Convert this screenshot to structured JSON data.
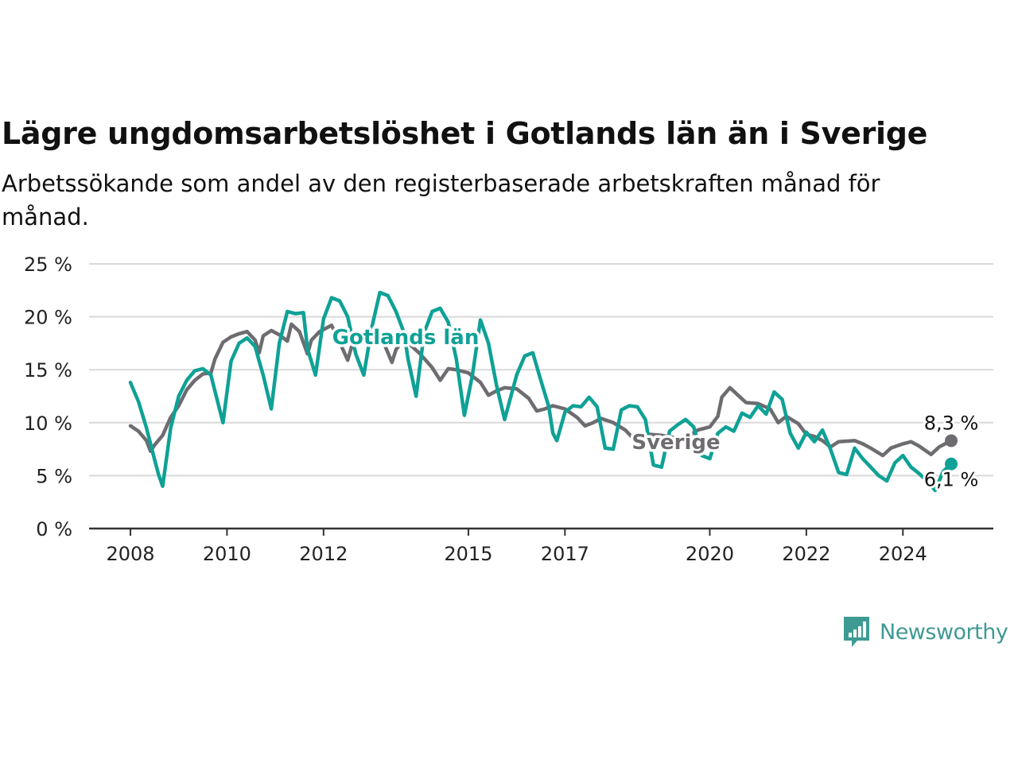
{
  "title": "Lägre ungdomsarbetslöshet i Gotlands län än i Sverige",
  "subtitle": "Arbetssökande som andel av den registerbaserade arbetskraften månad för månad.",
  "brand": "Newsworthy",
  "colors": {
    "gotland": "#0fa196",
    "sverige": "#6e6c70",
    "grid": "#d9d9d9",
    "axis": "#333333",
    "brand": "#3f9a93"
  },
  "chart_data": {
    "type": "line",
    "title": "Lägre ungdomsarbetslöshet i Gotlands län än i Sverige",
    "subtitle": "Arbetssökande som andel av den registerbaserade arbetskraften månad för månad.",
    "ylim": [
      0,
      25
    ],
    "xlim": [
      "2008-01",
      "2025-06"
    ],
    "y_ticks": [
      0,
      5,
      10,
      15,
      20,
      25
    ],
    "y_tick_labels": [
      "0 %",
      "5 %",
      "10 %",
      "15 %",
      "20 %",
      "25 %"
    ],
    "x_ticks": [
      "2008-01",
      "2010-01",
      "2012-01",
      "2015-01",
      "2017-01",
      "2020-01",
      "2022-01",
      "2024-01"
    ],
    "x_tick_labels": [
      "2008",
      "2010",
      "2012",
      "2015",
      "2017",
      "2020",
      "2022",
      "2024"
    ],
    "grid": "horizontal",
    "series": [
      {
        "name": "Sverige",
        "end_label": "8,3 %",
        "points": [
          [
            "2008-01",
            9.7
          ],
          [
            "2008-03",
            9.2
          ],
          [
            "2008-05",
            8.3
          ],
          [
            "2008-06",
            7.3
          ],
          [
            "2008-07",
            7.9
          ],
          [
            "2008-09",
            8.8
          ],
          [
            "2008-11",
            10.5
          ],
          [
            "2009-01",
            11.6
          ],
          [
            "2009-03",
            13.1
          ],
          [
            "2009-05",
            14.0
          ],
          [
            "2009-07",
            14.6
          ],
          [
            "2009-09",
            14.7
          ],
          [
            "2009-10",
            16.0
          ],
          [
            "2009-12",
            17.6
          ],
          [
            "2010-02",
            18.1
          ],
          [
            "2010-04",
            18.4
          ],
          [
            "2010-06",
            18.6
          ],
          [
            "2010-08",
            17.8
          ],
          [
            "2010-09",
            16.6
          ],
          [
            "2010-10",
            18.2
          ],
          [
            "2010-12",
            18.7
          ],
          [
            "2011-02",
            18.3
          ],
          [
            "2011-04",
            17.7
          ],
          [
            "2011-05",
            19.3
          ],
          [
            "2011-07",
            18.6
          ],
          [
            "2011-09",
            16.5
          ],
          [
            "2011-10",
            17.8
          ],
          [
            "2011-12",
            18.6
          ],
          [
            "2012-03",
            19.2
          ],
          [
            "2012-05",
            17.6
          ],
          [
            "2012-07",
            15.9
          ],
          [
            "2012-08",
            17.2
          ],
          [
            "2012-10",
            18.4
          ],
          [
            "2013-01",
            18.6
          ],
          [
            "2013-04",
            17.5
          ],
          [
            "2013-06",
            15.7
          ],
          [
            "2013-07",
            16.9
          ],
          [
            "2013-09",
            17.9
          ],
          [
            "2014-01",
            16.5
          ],
          [
            "2014-04",
            15.2
          ],
          [
            "2014-06",
            14.0
          ],
          [
            "2014-08",
            15.1
          ],
          [
            "2014-10",
            15.0
          ],
          [
            "2015-01",
            14.7
          ],
          [
            "2015-04",
            13.8
          ],
          [
            "2015-06",
            12.6
          ],
          [
            "2015-08",
            13.0
          ],
          [
            "2015-10",
            13.3
          ],
          [
            "2016-01",
            13.2
          ],
          [
            "2016-04",
            12.3
          ],
          [
            "2016-06",
            11.1
          ],
          [
            "2016-08",
            11.3
          ],
          [
            "2016-10",
            11.6
          ],
          [
            "2017-01",
            11.3
          ],
          [
            "2017-04",
            10.5
          ],
          [
            "2017-06",
            9.7
          ],
          [
            "2017-08",
            10.0
          ],
          [
            "2017-10",
            10.4
          ],
          [
            "2018-01",
            10.0
          ],
          [
            "2018-04",
            9.3
          ],
          [
            "2018-06",
            8.5
          ],
          [
            "2018-08",
            8.7
          ],
          [
            "2018-10",
            8.9
          ],
          [
            "2019-01",
            8.8
          ],
          [
            "2019-04",
            8.6
          ],
          [
            "2019-06",
            8.3
          ],
          [
            "2019-08",
            8.8
          ],
          [
            "2019-10",
            9.3
          ],
          [
            "2020-01",
            9.6
          ],
          [
            "2020-03",
            10.6
          ],
          [
            "2020-04",
            12.4
          ],
          [
            "2020-06",
            13.3
          ],
          [
            "2020-08",
            12.6
          ],
          [
            "2020-10",
            11.9
          ],
          [
            "2021-01",
            11.8
          ],
          [
            "2021-04",
            11.3
          ],
          [
            "2021-06",
            10.0
          ],
          [
            "2021-08",
            10.6
          ],
          [
            "2021-11",
            9.9
          ],
          [
            "2022-01",
            8.9
          ],
          [
            "2022-03",
            8.7
          ],
          [
            "2022-05",
            8.3
          ],
          [
            "2022-07",
            7.7
          ],
          [
            "2022-09",
            8.2
          ],
          [
            "2023-01",
            8.3
          ],
          [
            "2023-03",
            8.0
          ],
          [
            "2023-05",
            7.6
          ],
          [
            "2023-08",
            6.9
          ],
          [
            "2023-10",
            7.6
          ],
          [
            "2024-01",
            8.0
          ],
          [
            "2024-03",
            8.2
          ],
          [
            "2024-05",
            7.8
          ],
          [
            "2024-08",
            7.0
          ],
          [
            "2024-10",
            7.7
          ],
          [
            "2025-01",
            8.3
          ]
        ]
      },
      {
        "name": "Gotlands län",
        "end_label": "6,1 %",
        "points": [
          [
            "2008-01",
            13.8
          ],
          [
            "2008-03",
            12.0
          ],
          [
            "2008-05",
            9.5
          ],
          [
            "2008-07",
            6.5
          ],
          [
            "2008-08",
            5.1
          ],
          [
            "2008-09",
            4.0
          ],
          [
            "2008-11",
            9.5
          ],
          [
            "2009-01",
            12.5
          ],
          [
            "2009-03",
            14.0
          ],
          [
            "2009-05",
            14.9
          ],
          [
            "2009-07",
            15.1
          ],
          [
            "2009-09",
            14.5
          ],
          [
            "2009-10",
            13.0
          ],
          [
            "2009-12",
            10.0
          ],
          [
            "2010-02",
            15.8
          ],
          [
            "2010-04",
            17.5
          ],
          [
            "2010-06",
            18.0
          ],
          [
            "2010-08",
            17.2
          ],
          [
            "2010-09",
            15.8
          ],
          [
            "2010-10",
            14.5
          ],
          [
            "2010-12",
            11.3
          ],
          [
            "2011-02",
            17.5
          ],
          [
            "2011-04",
            20.5
          ],
          [
            "2011-06",
            20.3
          ],
          [
            "2011-08",
            20.4
          ],
          [
            "2011-09",
            17.0
          ],
          [
            "2011-11",
            14.5
          ],
          [
            "2012-01",
            19.8
          ],
          [
            "2012-03",
            21.8
          ],
          [
            "2012-05",
            21.5
          ],
          [
            "2012-07",
            20.0
          ],
          [
            "2012-09",
            16.5
          ],
          [
            "2012-11",
            14.5
          ],
          [
            "2013-01",
            19.0
          ],
          [
            "2013-03",
            22.3
          ],
          [
            "2013-05",
            22.0
          ],
          [
            "2013-07",
            20.5
          ],
          [
            "2013-09",
            18.5
          ],
          [
            "2013-10",
            16.0
          ],
          [
            "2013-12",
            12.5
          ],
          [
            "2014-02",
            18.5
          ],
          [
            "2014-04",
            20.5
          ],
          [
            "2014-06",
            20.8
          ],
          [
            "2014-08",
            19.5
          ],
          [
            "2014-10",
            16.0
          ],
          [
            "2014-12",
            10.7
          ],
          [
            "2015-02",
            14.5
          ],
          [
            "2015-04",
            19.7
          ],
          [
            "2015-06",
            17.5
          ],
          [
            "2015-08",
            13.5
          ],
          [
            "2015-10",
            10.3
          ],
          [
            "2016-01",
            14.5
          ],
          [
            "2016-03",
            16.3
          ],
          [
            "2016-05",
            16.6
          ],
          [
            "2016-07",
            14.0
          ],
          [
            "2016-09",
            11.5
          ],
          [
            "2016-10",
            9.0
          ],
          [
            "2016-11",
            8.3
          ],
          [
            "2017-01",
            11.0
          ],
          [
            "2017-03",
            11.6
          ],
          [
            "2017-05",
            11.5
          ],
          [
            "2017-07",
            12.4
          ],
          [
            "2017-09",
            11.5
          ],
          [
            "2017-11",
            7.6
          ],
          [
            "2018-01",
            7.5
          ],
          [
            "2018-03",
            11.2
          ],
          [
            "2018-05",
            11.6
          ],
          [
            "2018-07",
            11.5
          ],
          [
            "2018-09",
            10.3
          ],
          [
            "2018-11",
            6.0
          ],
          [
            "2019-01",
            5.8
          ],
          [
            "2019-03",
            9.2
          ],
          [
            "2019-05",
            9.8
          ],
          [
            "2019-07",
            10.3
          ],
          [
            "2019-09",
            9.6
          ],
          [
            "2019-11",
            6.9
          ],
          [
            "2020-01",
            6.6
          ],
          [
            "2020-03",
            9.0
          ],
          [
            "2020-05",
            9.6
          ],
          [
            "2020-07",
            9.2
          ],
          [
            "2020-09",
            10.9
          ],
          [
            "2020-11",
            10.5
          ],
          [
            "2021-01",
            11.6
          ],
          [
            "2021-03",
            10.8
          ],
          [
            "2021-05",
            12.9
          ],
          [
            "2021-07",
            12.2
          ],
          [
            "2021-09",
            9.0
          ],
          [
            "2021-11",
            7.6
          ],
          [
            "2022-01",
            9.1
          ],
          [
            "2022-03",
            8.2
          ],
          [
            "2022-05",
            9.3
          ],
          [
            "2022-07",
            7.5
          ],
          [
            "2022-09",
            5.3
          ],
          [
            "2022-11",
            5.1
          ],
          [
            "2023-01",
            7.6
          ],
          [
            "2023-03",
            6.6
          ],
          [
            "2023-05",
            5.8
          ],
          [
            "2023-07",
            5.0
          ],
          [
            "2023-09",
            4.5
          ],
          [
            "2023-11",
            6.2
          ],
          [
            "2024-01",
            6.9
          ],
          [
            "2024-03",
            5.8
          ],
          [
            "2024-05",
            5.2
          ],
          [
            "2024-07",
            4.5
          ],
          [
            "2024-09",
            3.6
          ],
          [
            "2024-11",
            5.4
          ],
          [
            "2025-01",
            6.1
          ]
        ]
      }
    ],
    "annotations": [
      "Gotlands län",
      "Sverige"
    ]
  }
}
